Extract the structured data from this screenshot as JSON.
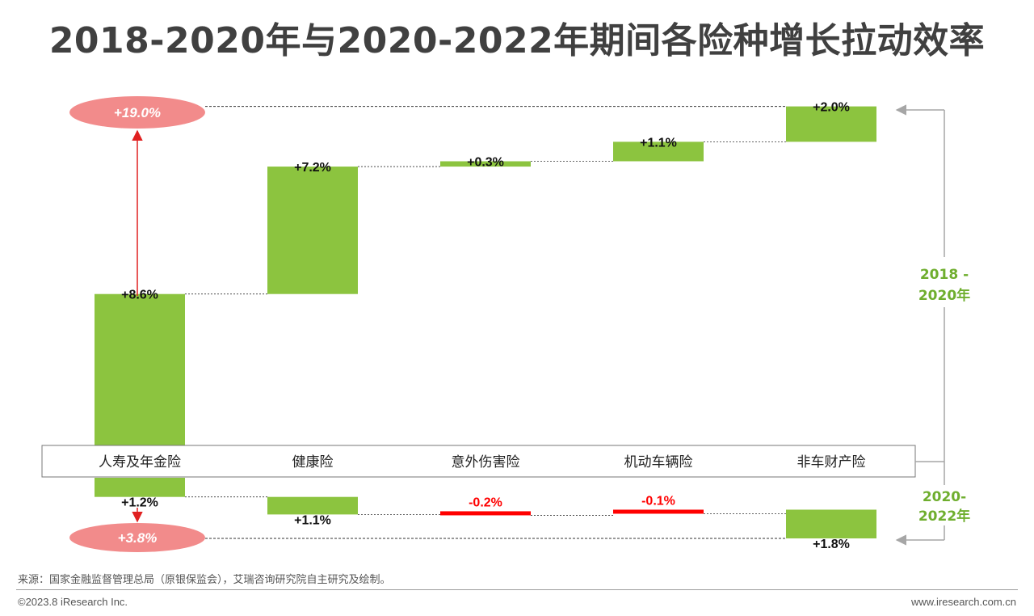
{
  "title": "2018-2020年与2020-2022年期间各险种增长拉动效率",
  "chart_data": {
    "type": "bar",
    "subtype": "waterfall",
    "categories": [
      "人寿及年金险",
      "健康险",
      "意外伤害险",
      "机动车辆险",
      "非车财产险"
    ],
    "series": [
      {
        "name": "2018 - 2020年",
        "values": [
          8.6,
          7.2,
          0.3,
          1.1,
          2.0
        ],
        "labels": [
          "+8.6%",
          "+7.2%",
          "+0.3%",
          "+1.1%",
          "+2.0%"
        ],
        "total": 19.0,
        "total_label": "+19.0%"
      },
      {
        "name": "2020-2022年",
        "values": [
          1.2,
          1.1,
          -0.2,
          -0.1,
          1.8
        ],
        "labels": [
          "+1.2%",
          "+1.1%",
          "-0.2%",
          "-0.1%",
          "+1.8%"
        ],
        "total": 3.8,
        "total_label": "+3.8%"
      }
    ],
    "colors": {
      "positive": "#8cc43f",
      "negative": "#ff0000",
      "total_ellipse": "#f28b8b",
      "arrow": "#e02020",
      "period_label": "#6fae2e",
      "bracket": "#a6a6a6"
    },
    "period_labels": {
      "upper": [
        "2018 -",
        "2020年"
      ],
      "lower": [
        "2020-",
        "2022年"
      ]
    },
    "legend": "none",
    "grid": false
  },
  "source": "来源：国家金融监督管理总局（原银保监会），艾瑞咨询研究院自主研究及绘制。",
  "copyright": "©2023.8 iResearch Inc.",
  "website": "www.iresearch.com.cn"
}
